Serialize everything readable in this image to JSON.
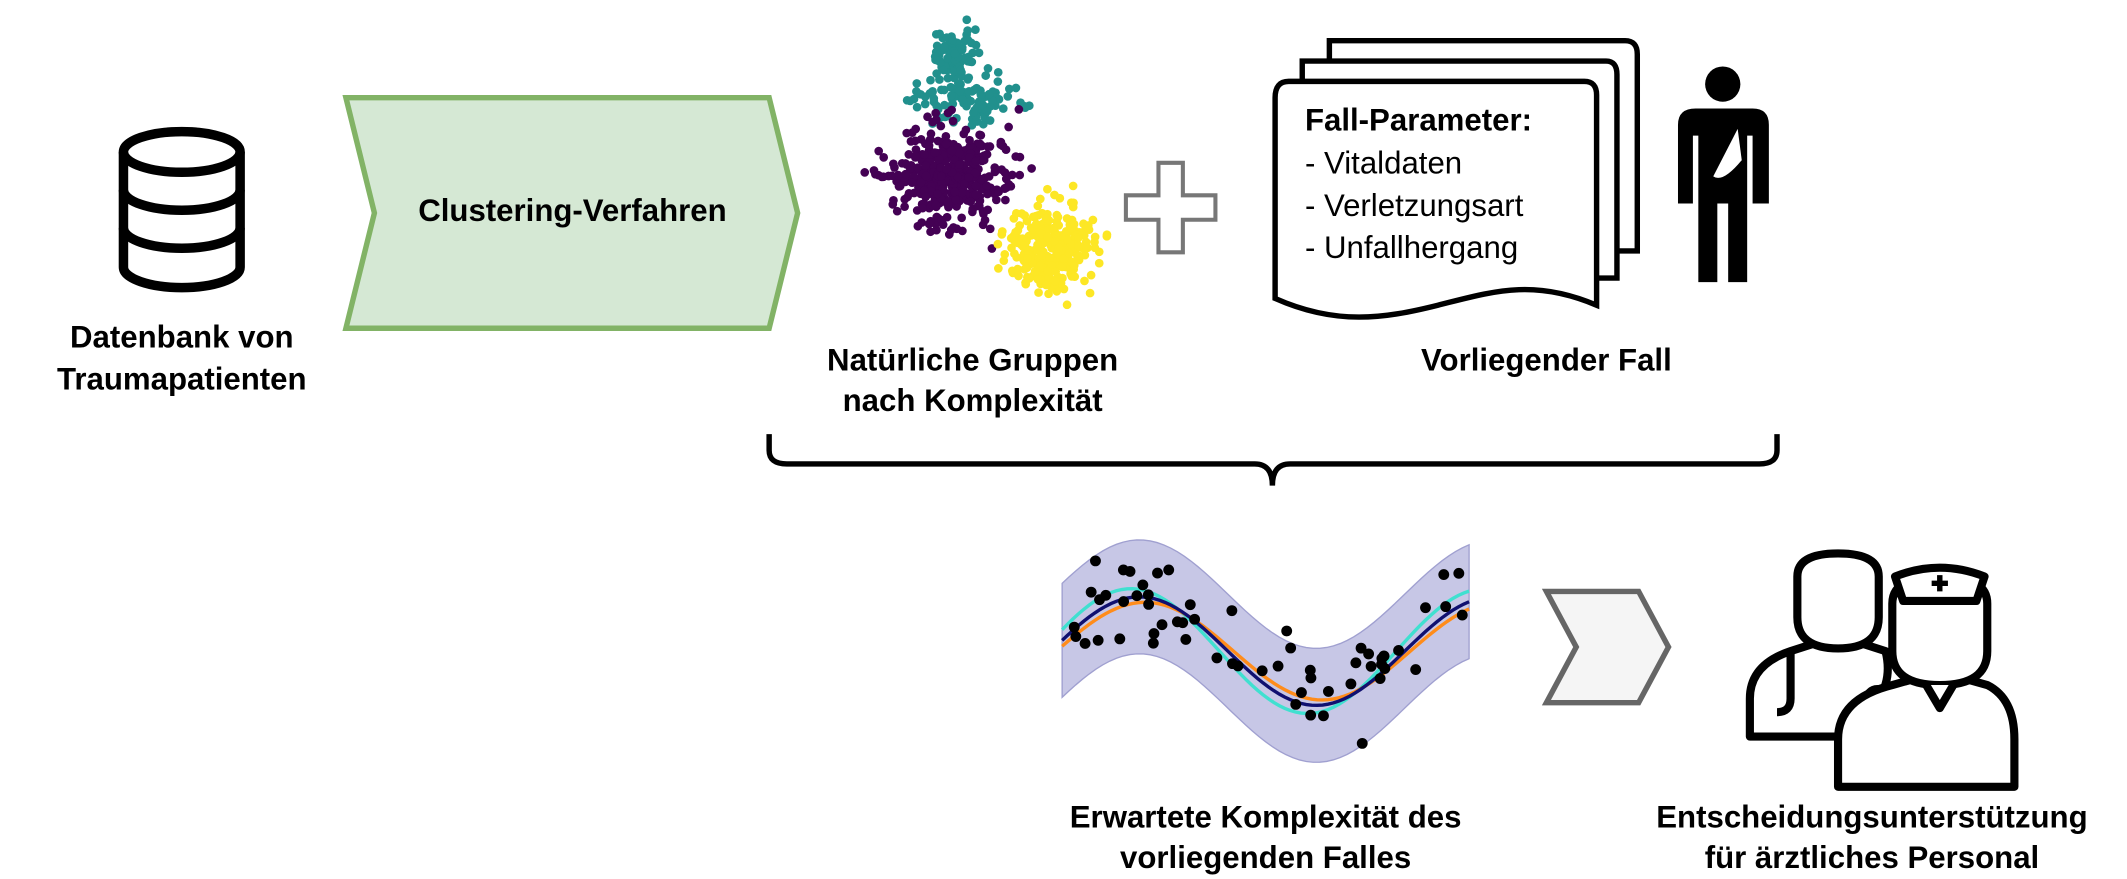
{
  "database": {
    "label": [
      "Datenbank von",
      "Traumapatienten"
    ]
  },
  "process": {
    "label": "Clustering-Verfahren"
  },
  "clusters": {
    "label": [
      "Natürliche Gruppen",
      "nach Komplexität"
    ]
  },
  "case": {
    "title": "Fall-Parameter:",
    "items": [
      "- Vitaldaten",
      "- Verletzungsart",
      "- Unfallhergang"
    ],
    "label": "Vorliegender Fall"
  },
  "prediction": {
    "label": [
      "Erwartete Komplexität des",
      "vorliegenden Falles"
    ]
  },
  "output": {
    "label": [
      "Entscheidungsunterstützung",
      "für ärztliches Personal"
    ]
  }
}
